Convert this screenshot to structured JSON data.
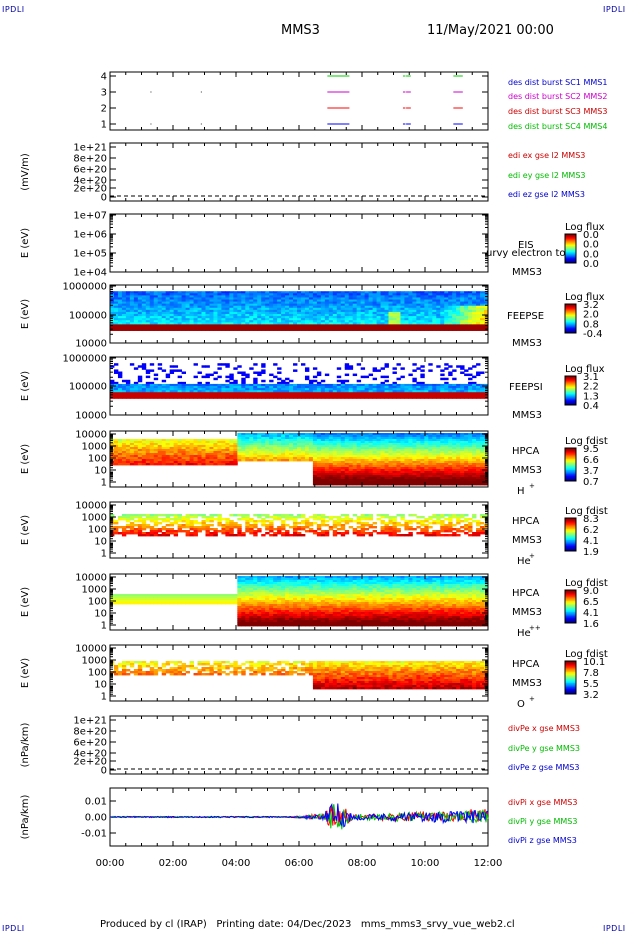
{
  "corner_tag": "IPDLI",
  "header": {
    "title": "MMS3",
    "datetime": "11/May/2021 00:00"
  },
  "footer": {
    "producer": "Produced by cl (IRAP)",
    "printing_date": "Printing date: 04/Dec/2023",
    "script_name": "mms_mms3_srvy_vue_web2.cl"
  },
  "colors": {
    "mms1": "#00cc00",
    "mms2": "#cc00cc",
    "mms3": "#ff0000",
    "mms4": "#0000ff",
    "x": "#ff0000",
    "y": "#00cc00",
    "z": "#0000ff"
  },
  "time_axis": {
    "ticks": [
      "00:00",
      "02:00",
      "04:00",
      "06:00",
      "08:00",
      "10:00",
      "12:00"
    ]
  },
  "panels": {
    "burst": {
      "yticks": [
        "4",
        "3",
        "2",
        "1"
      ],
      "labels": [
        {
          "text": "des dist burst SC1 MMS1",
          "color": "#0000cc"
        },
        {
          "text": "des dist burst SC2 MMS2",
          "color": "#cc00cc"
        },
        {
          "text": "des dist burst SC3 MMS3",
          "color": "#cc0000"
        },
        {
          "text": "des dist burst SC4 MMS4",
          "color": "#00bb00"
        }
      ]
    },
    "edi": {
      "ylabel": "(mV/m)",
      "yticks": [
        "1e+21",
        "8e+20",
        "6e+20",
        "4e+20",
        "2e+20",
        "0"
      ],
      "labels": [
        {
          "text": "edi ex gse l2 MMS3",
          "color": "#cc0000"
        },
        {
          "text": "edi ey gse l2 MMS3",
          "color": "#00bb00"
        },
        {
          "text": "edi ez gse l2 MMS3",
          "color": "#0000cc"
        }
      ]
    },
    "eis": {
      "ylabel": "E (eV)",
      "yticks": [
        "1e+07",
        "1e+06",
        "1e+05",
        "1e+04"
      ],
      "instrument": "EIS",
      "species": "MMS3",
      "overlay": "urvy electron to",
      "cbar_title": "Log flux",
      "cbar_ticks": [
        "0.0",
        "0.0",
        "0.0",
        "0.0"
      ]
    },
    "feepse": {
      "ylabel": "E (eV)",
      "yticks": [
        "1000000",
        "100000",
        "10000"
      ],
      "instrument": "FEEPSE",
      "species": "MMS3",
      "cbar_title": "Log flux",
      "cbar_ticks": [
        "3.2",
        "2.0",
        "0.8",
        "-0.4"
      ]
    },
    "feepsi": {
      "ylabel": "E (eV)",
      "yticks": [
        "1000000",
        "100000",
        "10000"
      ],
      "instrument": "FEEPSI",
      "species": "MMS3",
      "cbar_title": "Log flux",
      "cbar_ticks": [
        "3.1",
        "2.2",
        "1.3",
        "0.4"
      ]
    },
    "hpca_h": {
      "ylabel": "E (eV)",
      "yticks": [
        "10000",
        "1000",
        "100",
        "10",
        "1"
      ],
      "instrument": "HPCA",
      "species": "MMS3",
      "ion": "H",
      "ion_sup": "+",
      "cbar_title": "Log fdist",
      "cbar_ticks": [
        "9.5",
        "6.6",
        "3.7",
        "0.7"
      ]
    },
    "hpca_he": {
      "ylabel": "E (eV)",
      "yticks": [
        "10000",
        "1000",
        "100",
        "10",
        "1"
      ],
      "instrument": "HPCA",
      "species": "MMS3",
      "ion": "He",
      "ion_sup": "+",
      "cbar_title": "Log fdist",
      "cbar_ticks": [
        "8.3",
        "6.2",
        "4.1",
        "1.9"
      ]
    },
    "hpca_hepp": {
      "ylabel": "E (eV)",
      "yticks": [
        "10000",
        "1000",
        "100",
        "10",
        "1"
      ],
      "instrument": "HPCA",
      "species": "MMS3",
      "ion": "He",
      "ion_sup": "++",
      "cbar_title": "Log fdist",
      "cbar_ticks": [
        "9.0",
        "6.5",
        "4.1",
        "1.6"
      ]
    },
    "hpca_o": {
      "ylabel": "E (eV)",
      "yticks": [
        "10000",
        "1000",
        "100",
        "10",
        "1"
      ],
      "instrument": "HPCA",
      "species": "MMS3",
      "ion": "O",
      "ion_sup": "+",
      "cbar_title": "Log fdist",
      "cbar_ticks": [
        "10.1",
        "7.8",
        "5.5",
        "3.2"
      ]
    },
    "divpe": {
      "ylabel": "(nPa/km)",
      "yticks": [
        "1e+21",
        "8e+20",
        "6e+20",
        "4e+20",
        "2e+20",
        "0"
      ],
      "labels": [
        {
          "text": "divPe x gse MMS3",
          "color": "#cc0000"
        },
        {
          "text": "divPe y gse MMS3",
          "color": "#00bb00"
        },
        {
          "text": "divPe z gse MMS3",
          "color": "#0000cc"
        }
      ]
    },
    "divpi": {
      "ylabel": "(nPa/km)",
      "yticks": [
        "0.01",
        "0.00",
        "-0.01"
      ],
      "labels": [
        {
          "text": "divPi x gse MMS3",
          "color": "#cc0000"
        },
        {
          "text": "divPi y gse MMS3",
          "color": "#00bb00"
        },
        {
          "text": "divPi z gse MMS3",
          "color": "#0000cc"
        }
      ]
    }
  },
  "chart_data": [
    {
      "type": "scatter",
      "panel": "burst",
      "title": "",
      "ylim": [
        0.5,
        4.5
      ],
      "series": [
        {
          "name": "des dist burst SC1 MMS1",
          "y": 1,
          "intervals_hours": [
            [
              6.9,
              7.6
            ],
            [
              9.3,
              9.55
            ],
            [
              10.9,
              11.2
            ]
          ]
        },
        {
          "name": "des dist burst SC2 MMS2",
          "y": 2,
          "intervals_hours": [
            [
              6.9,
              7.6
            ],
            [
              9.3,
              9.55
            ],
            [
              10.9,
              11.2
            ]
          ]
        },
        {
          "name": "des dist burst SC3 MMS3",
          "y": 3,
          "intervals_hours": [
            [
              6.9,
              7.6
            ],
            [
              9.3,
              9.55
            ],
            [
              10.9,
              11.2
            ]
          ]
        },
        {
          "name": "des dist burst SC4 MMS4",
          "y": 4,
          "intervals_hours": [
            [
              6.9,
              7.6
            ],
            [
              9.3,
              9.55
            ],
            [
              10.9,
              11.2
            ]
          ]
        }
      ]
    },
    {
      "type": "line",
      "panel": "edi",
      "ylim": [
        0,
        1e+21
      ],
      "series": [
        {
          "name": "edi ex gse l2 MMS3",
          "values": []
        },
        {
          "name": "edi ey gse l2 MMS3",
          "values": []
        },
        {
          "name": "edi ez gse l2 MMS3",
          "values": []
        }
      ]
    },
    {
      "type": "heatmap",
      "panel": "feepse",
      "ylim": [
        10000,
        1000000
      ],
      "yscale": "log",
      "clim": [
        -0.4,
        3.2
      ]
    },
    {
      "type": "heatmap",
      "panel": "feepsi",
      "ylim": [
        10000,
        1000000
      ],
      "yscale": "log",
      "clim": [
        0.4,
        3.1
      ]
    },
    {
      "type": "heatmap",
      "panel": "hpca_h",
      "ylim": [
        1,
        40000
      ],
      "yscale": "log",
      "clim": [
        0.7,
        9.5
      ]
    },
    {
      "type": "heatmap",
      "panel": "hpca_he",
      "ylim": [
        1,
        40000
      ],
      "yscale": "log",
      "clim": [
        1.9,
        8.3
      ]
    },
    {
      "type": "heatmap",
      "panel": "hpca_hepp",
      "ylim": [
        1,
        40000
      ],
      "yscale": "log",
      "clim": [
        1.6,
        9.0
      ]
    },
    {
      "type": "heatmap",
      "panel": "hpca_o",
      "ylim": [
        1,
        40000
      ],
      "yscale": "log",
      "clim": [
        3.2,
        10.1
      ]
    },
    {
      "type": "line",
      "panel": "divpi",
      "ylim": [
        -0.015,
        0.015
      ],
      "xlim_hours": [
        0,
        12
      ],
      "series": [
        {
          "name": "divPi x gse MMS3"
        },
        {
          "name": "divPi y gse MMS3"
        },
        {
          "name": "divPi z gse MMS3"
        }
      ]
    }
  ]
}
